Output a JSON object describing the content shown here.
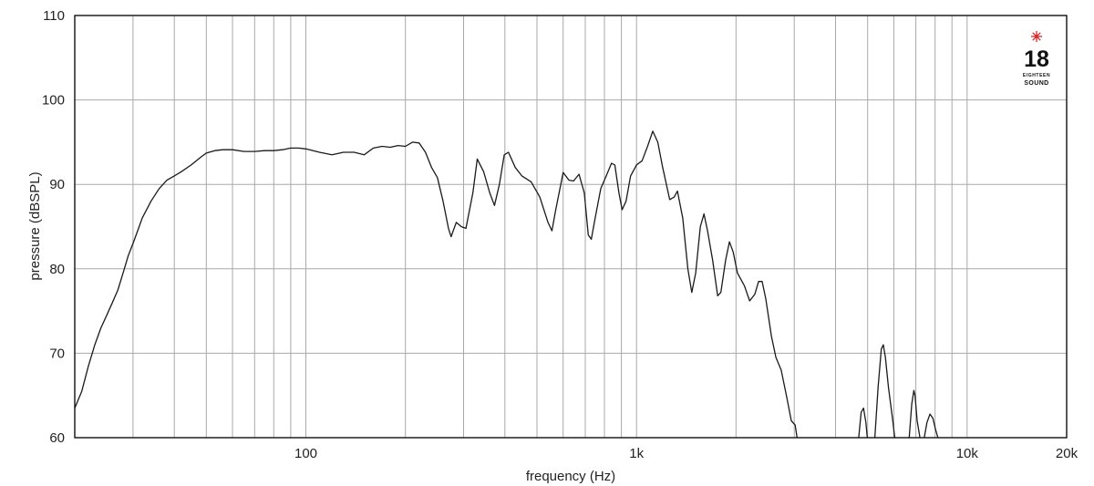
{
  "chart_data": {
    "type": "line",
    "xlabel": "frequency (Hz)",
    "ylabel": "pressure (dBSPL)",
    "x_scale": "log",
    "xlim": [
      20,
      20000
    ],
    "ylim": [
      60,
      110
    ],
    "grid": true,
    "y_ticks": [
      60,
      70,
      80,
      90,
      100,
      110
    ],
    "x_grid": [
      20,
      30,
      40,
      50,
      60,
      70,
      80,
      90,
      100,
      200,
      300,
      400,
      500,
      600,
      700,
      800,
      900,
      1000,
      2000,
      3000,
      4000,
      5000,
      6000,
      7000,
      8000,
      9000,
      10000,
      20000
    ],
    "x_tick_labels": [
      {
        "value": 100,
        "label": "100"
      },
      {
        "value": 1000,
        "label": "1k"
      },
      {
        "value": 10000,
        "label": "10k"
      },
      {
        "value": 20000,
        "label": "20k"
      }
    ],
    "series": [
      {
        "name": "",
        "segments": [
          [
            [
              20,
              63.5
            ],
            [
              21,
              65.5
            ],
            [
              22,
              68.5
            ],
            [
              23,
              71
            ],
            [
              24,
              73
            ],
            [
              25,
              74.5
            ],
            [
              26,
              76
            ],
            [
              27,
              77.5
            ],
            [
              28,
              79.5
            ],
            [
              29,
              81.5
            ],
            [
              30,
              83
            ],
            [
              31,
              84.5
            ],
            [
              32,
              86
            ],
            [
              34,
              88
            ],
            [
              36,
              89.5
            ],
            [
              38,
              90.5
            ],
            [
              40,
              91
            ],
            [
              42,
              91.5
            ],
            [
              45,
              92.3
            ],
            [
              48,
              93.2
            ],
            [
              50,
              93.7
            ],
            [
              53,
              94
            ],
            [
              56,
              94.1
            ],
            [
              60,
              94.1
            ],
            [
              65,
              93.9
            ],
            [
              70,
              93.9
            ],
            [
              75,
              94
            ],
            [
              80,
              94
            ],
            [
              85,
              94.1
            ],
            [
              90,
              94.3
            ],
            [
              95,
              94.3
            ],
            [
              100,
              94.2
            ],
            [
              110,
              93.8
            ],
            [
              120,
              93.5
            ],
            [
              130,
              93.8
            ],
            [
              140,
              93.8
            ],
            [
              150,
              93.5
            ],
            [
              160,
              94.3
            ],
            [
              170,
              94.5
            ],
            [
              180,
              94.4
            ],
            [
              190,
              94.6
            ],
            [
              200,
              94.5
            ],
            [
              210,
              95
            ],
            [
              220,
              94.9
            ],
            [
              230,
              93.8
            ],
            [
              240,
              92
            ],
            [
              250,
              90.8
            ],
            [
              260,
              88
            ],
            [
              270,
              84.8
            ],
            [
              275,
              83.8
            ],
            [
              285,
              85.5
            ],
            [
              295,
              85
            ],
            [
              305,
              84.8
            ],
            [
              320,
              89
            ],
            [
              330,
              93
            ],
            [
              345,
              91.5
            ],
            [
              360,
              89
            ],
            [
              372,
              87.5
            ],
            [
              385,
              90
            ],
            [
              398,
              93.5
            ],
            [
              410,
              93.8
            ],
            [
              430,
              92
            ],
            [
              450,
              91
            ],
            [
              480,
              90.3
            ],
            [
              510,
              88.5
            ],
            [
              540,
              85.5
            ],
            [
              555,
              84.5
            ],
            [
              570,
              87
            ],
            [
              600,
              91.4
            ],
            [
              625,
              90.5
            ],
            [
              645,
              90.4
            ],
            [
              670,
              91.2
            ],
            [
              695,
              89
            ],
            [
              715,
              84
            ],
            [
              730,
              83.5
            ],
            [
              750,
              86
            ],
            [
              780,
              89.5
            ],
            [
              810,
              91
            ],
            [
              840,
              92.5
            ],
            [
              860,
              92.3
            ],
            [
              885,
              89
            ],
            [
              905,
              87
            ],
            [
              930,
              88
            ],
            [
              960,
              91
            ],
            [
              1000,
              92.3
            ],
            [
              1040,
              92.8
            ],
            [
              1080,
              94.5
            ],
            [
              1120,
              96.3
            ],
            [
              1160,
              95
            ],
            [
              1200,
              92
            ],
            [
              1260,
              88.2
            ],
            [
              1300,
              88.5
            ],
            [
              1330,
              89.2
            ],
            [
              1380,
              86
            ],
            [
              1430,
              80
            ],
            [
              1470,
              77.2
            ],
            [
              1510,
              79.5
            ],
            [
              1560,
              85
            ],
            [
              1600,
              86.5
            ],
            [
              1640,
              84.5
            ],
            [
              1700,
              81
            ],
            [
              1760,
              76.8
            ],
            [
              1800,
              77.2
            ],
            [
              1860,
              81
            ],
            [
              1910,
              83.2
            ],
            [
              1960,
              82
            ],
            [
              2020,
              79.5
            ],
            [
              2120,
              78
            ],
            [
              2200,
              76.2
            ],
            [
              2280,
              77
            ],
            [
              2340,
              78.5
            ],
            [
              2400,
              78.5
            ],
            [
              2460,
              76.5
            ],
            [
              2560,
              72
            ],
            [
              2640,
              69.5
            ],
            [
              2740,
              68
            ],
            [
              2840,
              65
            ],
            [
              2940,
              62
            ],
            [
              3020,
              61.5
            ],
            [
              3060,
              60
            ]
          ],
          [
            [
              4700,
              60
            ],
            [
              4780,
              63
            ],
            [
              4860,
              63.5
            ],
            [
              4940,
              61.8
            ],
            [
              4990,
              60
            ]
          ],
          [
            [
              5260,
              60
            ],
            [
              5380,
              66
            ],
            [
              5500,
              70.5
            ],
            [
              5580,
              71
            ],
            [
              5660,
              69.5
            ],
            [
              5780,
              66
            ],
            [
              5960,
              62
            ],
            [
              6040,
              60
            ]
          ],
          [
            [
              6680,
              60
            ],
            [
              6800,
              64
            ],
            [
              6900,
              65.6
            ],
            [
              6960,
              65
            ],
            [
              7060,
              62
            ],
            [
              7200,
              60
            ]
          ],
          [
            [
              7420,
              60
            ],
            [
              7560,
              61.8
            ],
            [
              7720,
              62.8
            ],
            [
              7880,
              62.3
            ],
            [
              8020,
              61
            ],
            [
              8160,
              60
            ]
          ]
        ]
      }
    ]
  },
  "logo": {
    "number": "18",
    "small_text": "EIGHTEEN",
    "word": "SOUND",
    "accent_color": "#d62828"
  }
}
